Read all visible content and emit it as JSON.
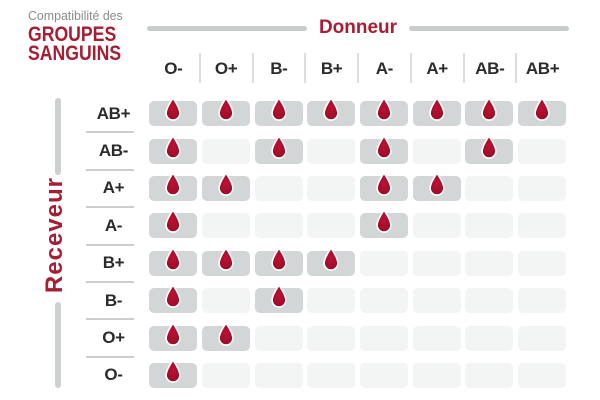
{
  "title": {
    "kicker": "Compatibilité des",
    "line1": "GROUPES",
    "line2": "SANGUINS"
  },
  "axes": {
    "donor": "Donneur",
    "receiver": "Receveur"
  },
  "icons": {
    "compatible_marker": "blood-drop-icon"
  },
  "colors": {
    "accent_red": "#a51e33",
    "drop_red_center": "#bd1134",
    "drop_red_edge": "#8a0a22",
    "drop_stroke": "#ffffff",
    "cell_active": "#d3d6d7",
    "cell_empty": "#f3f4f4",
    "kicker_gray": "#8c8c8c",
    "axis_line_gray": "#c9cccd",
    "label_dark": "#2b2b2b"
  },
  "chart_data": {
    "type": "heatmap",
    "title": "Compatibilité des GROUPES SANGUINS",
    "x_label": "Donneur",
    "y_label": "Receveur",
    "columns": [
      "O-",
      "O+",
      "B-",
      "B+",
      "A-",
      "A+",
      "AB-",
      "AB+"
    ],
    "rows": [
      "AB+",
      "AB-",
      "A+",
      "A-",
      "B+",
      "B-",
      "O+",
      "O-"
    ],
    "matrix": [
      [
        1,
        1,
        1,
        1,
        1,
        1,
        1,
        1
      ],
      [
        1,
        0,
        1,
        0,
        1,
        0,
        1,
        0
      ],
      [
        1,
        1,
        0,
        0,
        1,
        1,
        0,
        0
      ],
      [
        1,
        0,
        0,
        0,
        1,
        0,
        0,
        0
      ],
      [
        1,
        1,
        1,
        1,
        0,
        0,
        0,
        0
      ],
      [
        1,
        0,
        1,
        0,
        0,
        0,
        0,
        0
      ],
      [
        1,
        1,
        0,
        0,
        0,
        0,
        0,
        0
      ],
      [
        1,
        0,
        0,
        0,
        0,
        0,
        0,
        0
      ]
    ],
    "marker_meaning": "drop icon = compatible donation"
  }
}
